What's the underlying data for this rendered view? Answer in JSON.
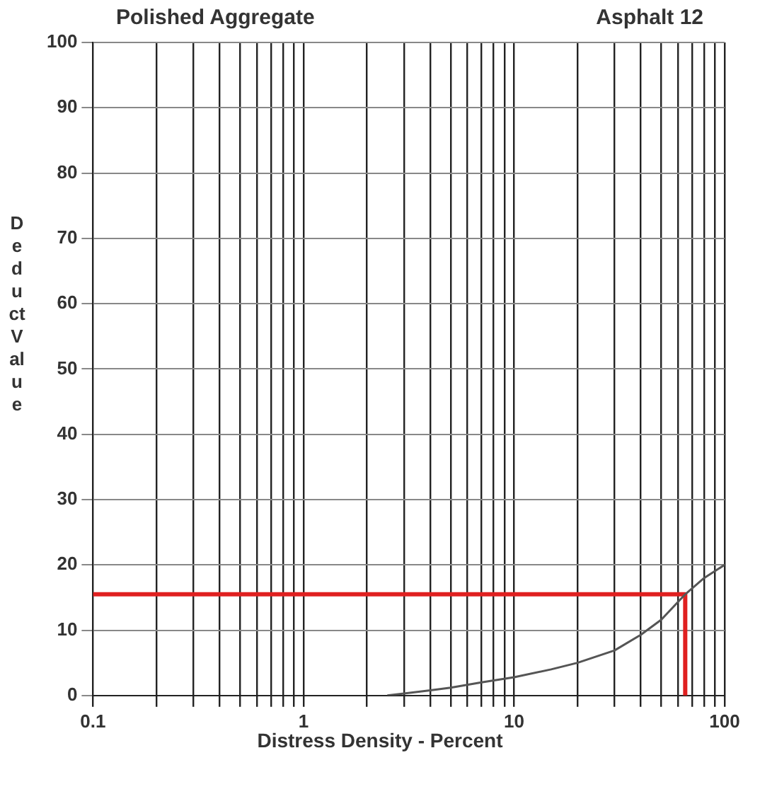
{
  "chart_data": {
    "type": "line",
    "title": "Polished Aggregate",
    "subtitle": "Asphalt 12",
    "xlabel": "Distress Density - Percent",
    "ylabel": "Deduct Value",
    "log": "x",
    "xlim": [
      0.1,
      100
    ],
    "ylim": [
      0,
      100
    ],
    "xticks": [
      0.1,
      {
        "value": 0.2,
        "label": null
      },
      {
        "value": 0.3,
        "label": null
      },
      {
        "value": 0.4,
        "label": null
      },
      {
        "value": 0.5,
        "label": null
      },
      {
        "value": 0.6,
        "label": null
      },
      {
        "value": 0.7,
        "label": null
      },
      {
        "value": 0.8,
        "label": null
      },
      {
        "value": 0.9,
        "label": null
      },
      1,
      {
        "value": 2,
        "label": null
      },
      {
        "value": 3,
        "label": null
      },
      {
        "value": 4,
        "label": null
      },
      {
        "value": 5,
        "label": null
      },
      {
        "value": 6,
        "label": null
      },
      {
        "value": 7,
        "label": null
      },
      {
        "value": 8,
        "label": null
      },
      {
        "value": 9,
        "label": null
      },
      10,
      {
        "value": 20,
        "label": null
      },
      {
        "value": 30,
        "label": null
      },
      {
        "value": 40,
        "label": null
      },
      {
        "value": 50,
        "label": null
      },
      {
        "value": 60,
        "label": null
      },
      {
        "value": 70,
        "label": null
      },
      {
        "value": 80,
        "label": null
      },
      {
        "value": 90,
        "label": null
      },
      100
    ],
    "yticks": [
      0,
      10,
      20,
      30,
      40,
      50,
      60,
      70,
      80,
      90,
      100
    ],
    "grid": true,
    "legend": false,
    "marker": "none",
    "line_style": "solid",
    "series": [
      {
        "color": "#555555",
        "x": [
          2.5,
          3,
          4,
          5,
          7,
          10,
          15,
          20,
          30,
          40,
          50,
          65,
          80,
          100
        ],
        "values": [
          0,
          0.3,
          0.8,
          1.2,
          2,
          2.8,
          4,
          5,
          6.9,
          9.3,
          11.6,
          15.5,
          18,
          20
        ]
      },
      {
        "color": "#e02020",
        "x": [
          0.1,
          65,
          65
        ],
        "values": [
          15.5,
          15.5,
          0
        ]
      }
    ]
  }
}
